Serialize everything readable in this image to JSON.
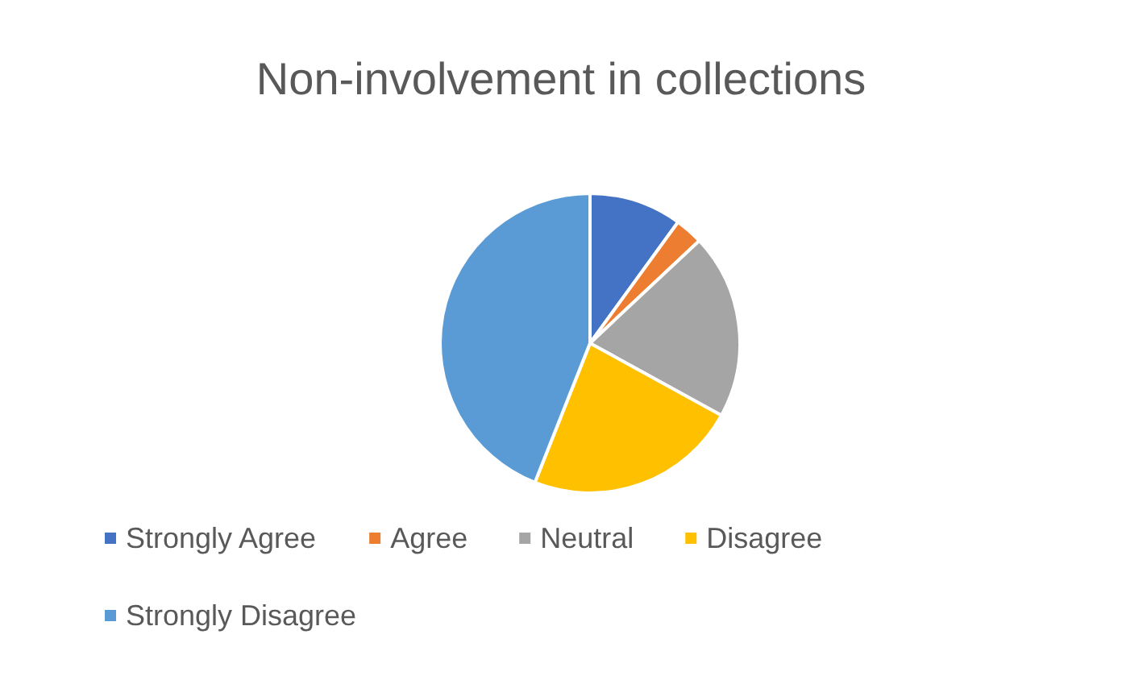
{
  "chart_data": {
    "type": "pie",
    "title": "Non-involvement in collections",
    "categories": [
      "Strongly Agree",
      "Agree",
      "Neutral",
      "Disagree",
      "Strongly Disagree"
    ],
    "values": [
      10,
      3,
      20,
      23,
      44
    ],
    "colors": [
      "#4472c4",
      "#ed7d31",
      "#a5a5a5",
      "#ffc000",
      "#5b9bd5"
    ],
    "legend": "bottom"
  }
}
